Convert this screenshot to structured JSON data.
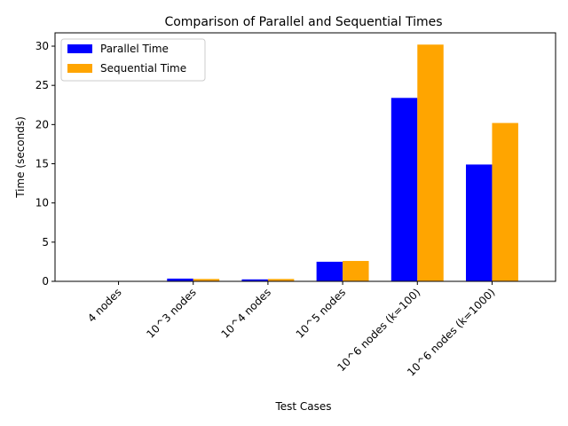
{
  "chart_data": {
    "type": "bar",
    "title": "Comparison of Parallel and Sequential Times",
    "xlabel": "Test Cases",
    "ylabel": "Time (seconds)",
    "categories": [
      "4 nodes",
      "10^3 nodes",
      "10^4 nodes",
      "10^5 nodes",
      "10^6 nodes (k=100)",
      "10^6 nodes (k=1000)"
    ],
    "series": [
      {
        "name": "Parallel Time",
        "color": "#0000ff",
        "values": [
          0.003,
          0.35,
          0.25,
          2.5,
          23.4,
          14.9
        ]
      },
      {
        "name": "Sequential Time",
        "color": "#ffa500",
        "values": [
          0.001,
          0.3,
          0.3,
          2.6,
          30.2,
          20.2
        ]
      }
    ],
    "ylim": [
      0,
      31.7
    ],
    "yticks": [
      0,
      5,
      10,
      15,
      20,
      25,
      30
    ],
    "grid": false,
    "legend_position": "top-left"
  }
}
